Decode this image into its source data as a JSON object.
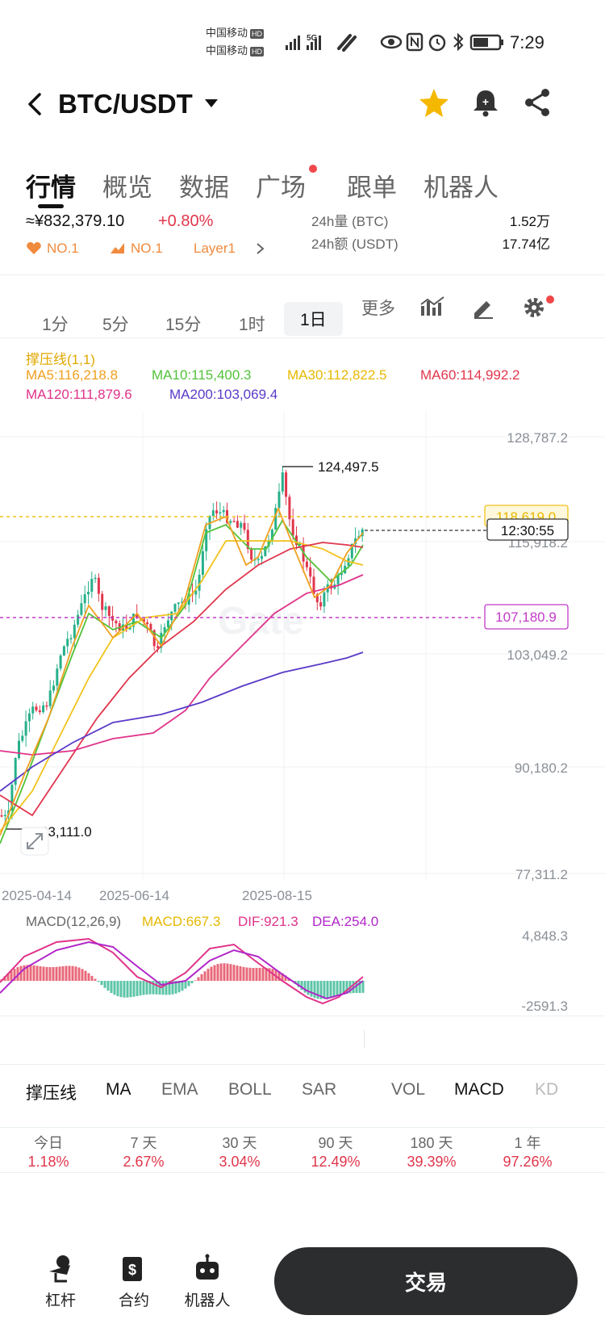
{
  "status_bar": {
    "carrier1": "中国移动",
    "carrier2": "中国移动",
    "hd": "HD",
    "signal": "5G",
    "time": "7:29"
  },
  "header": {
    "back_icon": "chevron-left-icon",
    "pair": "BTC/USDT",
    "star_color": "#f5b800"
  },
  "tabs": [
    {
      "label": "行情",
      "active": true
    },
    {
      "label": "概览"
    },
    {
      "label": "数据"
    },
    {
      "label": "广场",
      "dot": true
    },
    {
      "label": "跟单"
    },
    {
      "label": "机器人"
    }
  ],
  "ticker": {
    "price": "≈¥832,379.10",
    "change": "+0.80%",
    "badge1": "NO.1",
    "badge2": "NO.1",
    "badge3": "Layer1",
    "vol_label": "24h量 (BTC)",
    "vol_value": "1.52万",
    "amt_label": "24h额 (USDT)",
    "amt_value": "17.74亿"
  },
  "intervals": [
    "1分",
    "5分",
    "15分",
    "1时",
    "1日",
    "更多"
  ],
  "selected_interval": "1日",
  "indicators_header": {
    "sr": "撑压线(1,1)",
    "ma5": "MA5:116,218.8",
    "ma10": "MA10:115,400.3",
    "ma30": "MA30:112,822.5",
    "ma60": "MA60:114,992.2",
    "ma120": "MA120:111,879.6",
    "ma200": "MA200:103,069.4"
  },
  "chart": {
    "y_labels": [
      "128,787.2",
      "115,918.2",
      "103,049.2",
      "90,180.2",
      "77,311.2"
    ],
    "high_label": "124,497.5",
    "low_label": "83,111.0",
    "resistance": "118,619.0",
    "support": "107,180.9",
    "countdown": "12:30:55",
    "dates": [
      "2025-04-14",
      "2025-06-14",
      "2025-08-15"
    ],
    "watermark": "Gate"
  },
  "macd": {
    "label": "MACD(12,26,9)",
    "macd": "MACD:667.3",
    "dif": "DIF:921.3",
    "dea": "DEA:254.0",
    "top": "4,848.3",
    "bottom": "-2591.3"
  },
  "indicator_tabs": [
    "撑压线",
    "MA",
    "EMA",
    "BOLL",
    "SAR",
    "VOL",
    "MACD",
    "KD"
  ],
  "performance": [
    {
      "period": "今日",
      "value": "1.18%"
    },
    {
      "period": "7 天",
      "value": "2.67%"
    },
    {
      "period": "30 天",
      "value": "3.04%"
    },
    {
      "period": "90 天",
      "value": "12.49%"
    },
    {
      "period": "180 天",
      "value": "39.39%"
    },
    {
      "period": "1 年",
      "value": "97.26%"
    }
  ],
  "bottom_nav": {
    "leverage": "杠杆",
    "contract": "合约",
    "bot": "机器人",
    "trade": "交易"
  },
  "colors": {
    "up": "#e0364c",
    "down": "#26b08a",
    "ma5": "#f0a020",
    "ma10": "#52c23a",
    "ma30": "#f2c21b",
    "ma60": "#e0364c",
    "ma120": "#e0338a",
    "ma200": "#5a3ac8"
  }
}
